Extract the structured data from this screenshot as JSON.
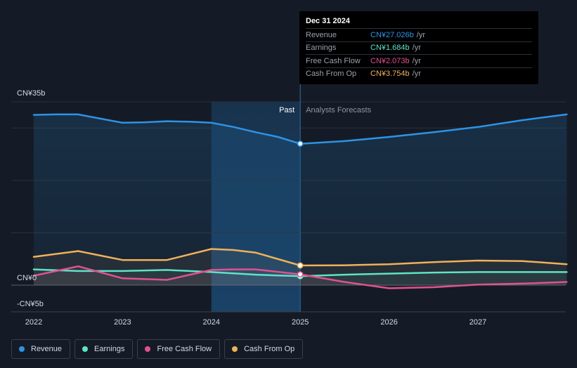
{
  "tooltip": {
    "date": "Dec 31 2024",
    "rows": [
      {
        "label": "Revenue",
        "value": "CN¥27.026b",
        "unit": "/yr",
        "color": "#2e93e6"
      },
      {
        "label": "Earnings",
        "value": "CN¥1.684b",
        "unit": "/yr",
        "color": "#5ee3c6"
      },
      {
        "label": "Free Cash Flow",
        "value": "CN¥2.073b",
        "unit": "/yr",
        "color": "#e0528f"
      },
      {
        "label": "Cash From Op",
        "value": "CN¥3.754b",
        "unit": "/yr",
        "color": "#f0b15a"
      }
    ]
  },
  "legend": [
    {
      "label": "Revenue",
      "color": "#2e93e6"
    },
    {
      "label": "Earnings",
      "color": "#5ee3c6"
    },
    {
      "label": "Free Cash Flow",
      "color": "#e0528f"
    },
    {
      "label": "Cash From Op",
      "color": "#f0b15a"
    }
  ],
  "chart_data": {
    "type": "line",
    "title": "",
    "xlabel": "",
    "ylabel": "",
    "xlim": [
      2021.8,
      2028.0
    ],
    "ylim": [
      -5,
      35
    ],
    "y_tick_labels": [
      {
        "value": 35,
        "label": "CN¥35b"
      },
      {
        "value": 0,
        "label": "CN¥0"
      },
      {
        "value": -5,
        "label": "-CN¥5b"
      }
    ],
    "x_ticks": [
      2022,
      2023,
      2024,
      2025,
      2026,
      2027
    ],
    "x_tick_labels": [
      "2022",
      "2023",
      "2024",
      "2025",
      "2026",
      "2027"
    ],
    "gridlines": [
      35,
      30,
      20,
      10,
      0
    ],
    "past_label": "Past",
    "forecast_label": "Analysts Forecasts",
    "divider_x": 2025,
    "highlight_start": 2024,
    "series": [
      {
        "name": "Revenue",
        "color": "#2e93e6",
        "points": [
          [
            2022,
            32.5
          ],
          [
            2022.25,
            32.6
          ],
          [
            2022.5,
            32.6
          ],
          [
            2022.75,
            31.8
          ],
          [
            2023,
            31.0
          ],
          [
            2023.25,
            31.1
          ],
          [
            2023.5,
            31.3
          ],
          [
            2023.75,
            31.2
          ],
          [
            2024,
            31.0
          ],
          [
            2024.25,
            30.2
          ],
          [
            2024.5,
            29.2
          ],
          [
            2024.75,
            28.3
          ],
          [
            2025,
            27.0
          ],
          [
            2025.5,
            27.5
          ],
          [
            2026,
            28.3
          ],
          [
            2026.5,
            29.2
          ],
          [
            2027,
            30.2
          ],
          [
            2027.5,
            31.5
          ],
          [
            2028,
            32.6
          ]
        ]
      },
      {
        "name": "Earnings",
        "color": "#5ee3c6",
        "points": [
          [
            2022,
            3.0
          ],
          [
            2022.5,
            2.7
          ],
          [
            2023,
            2.7
          ],
          [
            2023.5,
            2.9
          ],
          [
            2024,
            2.5
          ],
          [
            2024.5,
            2.0
          ],
          [
            2025,
            1.7
          ],
          [
            2025.5,
            2.0
          ],
          [
            2026,
            2.2
          ],
          [
            2026.5,
            2.4
          ],
          [
            2027,
            2.5
          ],
          [
            2027.5,
            2.5
          ],
          [
            2028,
            2.5
          ]
        ]
      },
      {
        "name": "Free Cash Flow",
        "color": "#e0528f",
        "points": [
          [
            2022,
            1.8
          ],
          [
            2022.5,
            3.6
          ],
          [
            2023,
            1.3
          ],
          [
            2023.5,
            1.0
          ],
          [
            2024,
            2.9
          ],
          [
            2024.25,
            3.0
          ],
          [
            2024.5,
            3.0
          ],
          [
            2025,
            2.07
          ],
          [
            2025.5,
            0.6
          ],
          [
            2026,
            -0.6
          ],
          [
            2026.5,
            -0.4
          ],
          [
            2027,
            0.1
          ],
          [
            2027.5,
            0.3
          ],
          [
            2028,
            0.6
          ]
        ]
      },
      {
        "name": "Cash From Op",
        "color": "#f0b15a",
        "points": [
          [
            2022,
            5.4
          ],
          [
            2022.5,
            6.5
          ],
          [
            2023,
            4.8
          ],
          [
            2023.5,
            4.8
          ],
          [
            2024,
            6.9
          ],
          [
            2024.25,
            6.7
          ],
          [
            2024.5,
            6.2
          ],
          [
            2025,
            3.754
          ],
          [
            2025.5,
            3.8
          ],
          [
            2026,
            4.0
          ],
          [
            2026.5,
            4.4
          ],
          [
            2027,
            4.7
          ],
          [
            2027.5,
            4.6
          ],
          [
            2028,
            4.0
          ]
        ]
      }
    ]
  }
}
